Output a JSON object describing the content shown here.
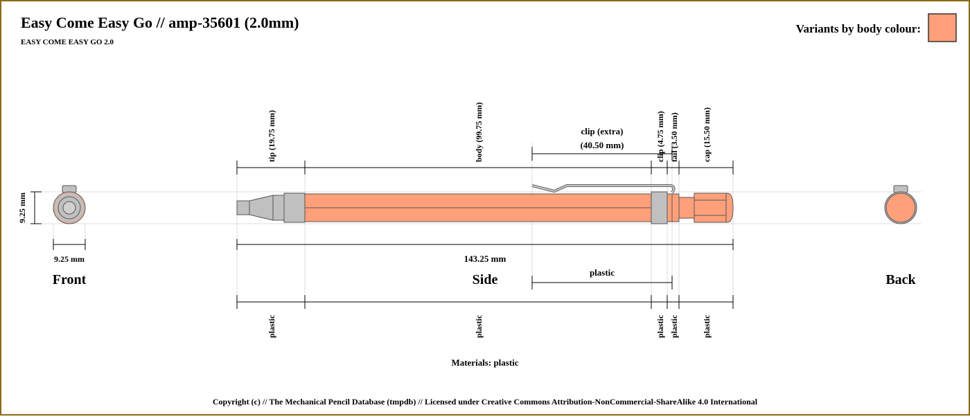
{
  "header": {
    "title": "Easy Come Easy Go // amp-35601 (2.0mm)",
    "subtitle": "EASY COME EASY GO 2.0",
    "variants_label": "Variants by body colour:"
  },
  "colors": {
    "body": "#ffa07a",
    "metal": "#c0c0c0",
    "outline": "#333333",
    "frame": "#8b6914"
  },
  "views": {
    "front": "Front",
    "side": "Side",
    "back": "Back"
  },
  "dimensions": {
    "diameter_vertical": "9.25 mm",
    "diameter_horizontal": "9.25 mm",
    "total_length": "143.25 mm"
  },
  "parts": [
    {
      "id": "tip",
      "label": "tip (19.75 mm)",
      "material": "plastic"
    },
    {
      "id": "body",
      "label": "body (99.75 mm)",
      "material": "plastic"
    },
    {
      "id": "clip",
      "label": "clip (4.75 mm)",
      "material": "plastic"
    },
    {
      "id": "tail",
      "label": "tail (3.50 mm)",
      "material": "plastic"
    },
    {
      "id": "cap",
      "label": "cap (15.50 mm)",
      "material": "plastic"
    }
  ],
  "extra_clip": {
    "label_line1": "clip (extra)",
    "label_line2": "(40.50 mm)",
    "material": "plastic"
  },
  "materials": "Materials: plastic",
  "copyright": "Copyright (c) // The Mechanical Pencil Database (tmpdb) // Licensed under Creative Commons Attribution-NonCommercial-ShareAlike 4.0 International"
}
